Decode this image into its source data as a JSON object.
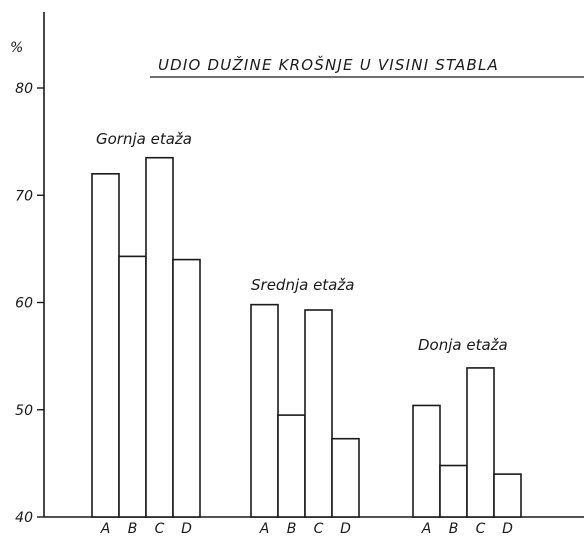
{
  "chart_data": {
    "type": "bar",
    "title": "UDIO DUŽINE KROŠNJE U VISINI STABLA",
    "y_unit_label": "%",
    "ylim": [
      40,
      80
    ],
    "yticks": [
      40,
      50,
      60,
      70,
      80
    ],
    "categories": [
      "A",
      "B",
      "C",
      "D"
    ],
    "groups": [
      {
        "name": "Gornja etaža",
        "values": [
          72.0,
          64.3,
          73.5,
          64.0
        ]
      },
      {
        "name": "Srednja etaža",
        "values": [
          59.8,
          49.5,
          59.3,
          47.3
        ]
      },
      {
        "name": "Donja etaža",
        "values": [
          50.4,
          44.8,
          53.9,
          44.0
        ]
      }
    ],
    "grid": false
  },
  "colors": {
    "ink": "#1a1a1a",
    "background": "#ffffff"
  }
}
